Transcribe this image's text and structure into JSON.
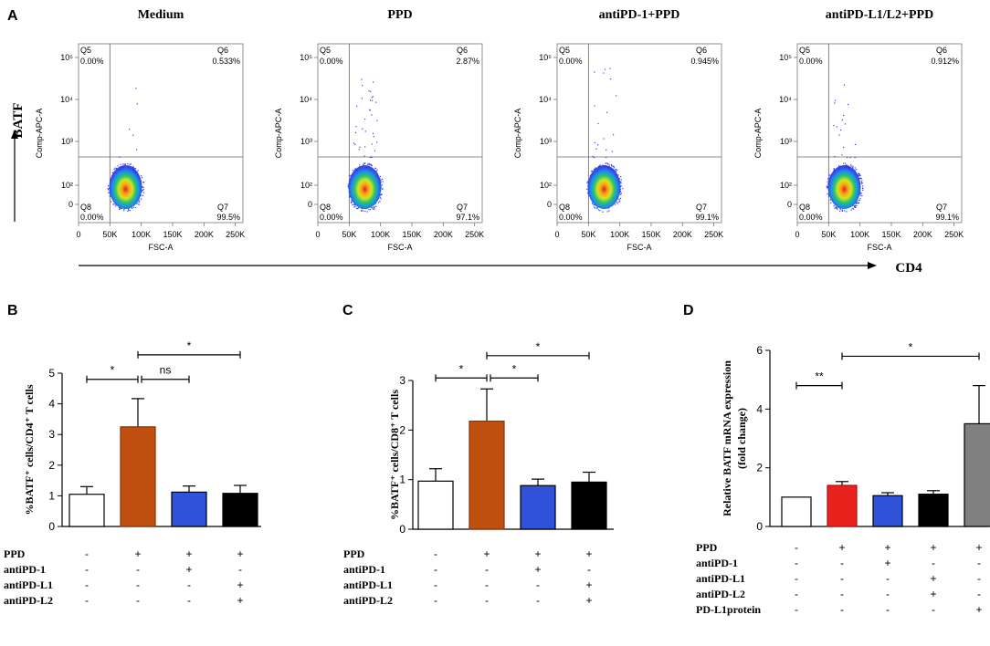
{
  "chart_data": [
    {
      "panel": "A",
      "type": "scatter",
      "description_labels": {
        "y_marker": "BATF",
        "x_marker": "CD4"
      },
      "xlabel": "FSC-A",
      "ylabel": "Comp-APC-A",
      "x_ticks": [
        "0",
        "50K",
        "100K",
        "150K",
        "200K",
        "250K"
      ],
      "x_tick_values": [
        0,
        50000,
        100000,
        150000,
        200000,
        250000
      ],
      "xlim": [
        0,
        262144
      ],
      "y_ticks": [
        "0",
        "10²",
        "10³",
        "10⁴",
        "10⁵"
      ],
      "plots": [
        {
          "title": "Medium",
          "quadrants": {
            "Q5": "0.00%",
            "Q6": "0.533%",
            "Q7": "99.5%",
            "Q8": "0.00%"
          }
        },
        {
          "title": "PPD",
          "quadrants": {
            "Q5": "0.00%",
            "Q6": "2.87%",
            "Q7": "97.1%",
            "Q8": "0.00%"
          }
        },
        {
          "title": "antiPD-1+PPD",
          "quadrants": {
            "Q5": "0.00%",
            "Q6": "0.945%",
            "Q7": "99.1%",
            "Q8": "0.00%"
          }
        },
        {
          "title": "antiPD-L1/L2+PPD",
          "quadrants": {
            "Q5": "0.00%",
            "Q6": "0.912%",
            "Q7": "99.1%",
            "Q8": "0.00%"
          }
        }
      ]
    },
    {
      "panel": "B",
      "type": "bar",
      "ylabel": "%BATF⁺ cells/CD4⁺ T cells",
      "ylim": [
        0,
        5
      ],
      "y_ticks": [
        0,
        1,
        2,
        3,
        4,
        5
      ],
      "values": [
        1.05,
        3.25,
        1.12,
        1.08
      ],
      "errors": [
        0.25,
        0.92,
        0.2,
        0.26
      ],
      "colors": [
        "#ffffff",
        "#c0500f",
        "#2f52d8",
        "#000000"
      ],
      "treatment_rows": [
        {
          "label": "PPD",
          "signs": [
            "-",
            "+",
            "+",
            "+"
          ]
        },
        {
          "label": "antiPD-1",
          "signs": [
            "-",
            "-",
            "+",
            "-"
          ]
        },
        {
          "label": "antiPD-L1",
          "signs": [
            "-",
            "-",
            "-",
            "+"
          ]
        },
        {
          "label": "antiPD-L2",
          "signs": [
            "-",
            "-",
            "-",
            "+"
          ]
        }
      ],
      "significance": [
        {
          "from": 0,
          "to": 1,
          "label": "*",
          "y": 4.8
        },
        {
          "from": 1,
          "to": 2,
          "label": "ns",
          "y": 4.8
        },
        {
          "from": 1,
          "to": 3,
          "label": "*",
          "y": 5.6
        }
      ]
    },
    {
      "panel": "C",
      "type": "bar",
      "ylabel": "%BATF⁺ cells/CD8⁺ T cells",
      "ylim": [
        0,
        3
      ],
      "y_ticks": [
        0,
        1,
        2,
        3
      ],
      "values": [
        0.97,
        2.18,
        0.88,
        0.95
      ],
      "errors": [
        0.25,
        0.65,
        0.13,
        0.2
      ],
      "colors": [
        "#ffffff",
        "#c0500f",
        "#2f52d8",
        "#000000"
      ],
      "treatment_rows": [
        {
          "label": "PPD",
          "signs": [
            "-",
            "+",
            "+",
            "+"
          ]
        },
        {
          "label": "antiPD-1",
          "signs": [
            "-",
            "-",
            "+",
            "-"
          ]
        },
        {
          "label": "antiPD-L1",
          "signs": [
            "-",
            "-",
            "-",
            "+"
          ]
        },
        {
          "label": "antiPD-L2",
          "signs": [
            "-",
            "-",
            "-",
            "+"
          ]
        }
      ],
      "significance": [
        {
          "from": 0,
          "to": 1,
          "label": "*",
          "y": 3.05
        },
        {
          "from": 1,
          "to": 2,
          "label": "*",
          "y": 3.05
        },
        {
          "from": 1,
          "to": 3,
          "label": "*",
          "y": 3.5
        }
      ]
    },
    {
      "panel": "D",
      "type": "bar",
      "ylabel": "Relative BATF mRNA expression",
      "ylabel2": "(fold change)",
      "ylim": [
        0,
        6
      ],
      "y_ticks": [
        0,
        2,
        4,
        6
      ],
      "values": [
        1.0,
        1.4,
        1.05,
        1.1,
        3.5
      ],
      "errors": [
        0.0,
        0.13,
        0.1,
        0.12,
        1.3
      ],
      "colors": [
        "#ffffff",
        "#e8221c",
        "#2f52d8",
        "#000000",
        "#808080"
      ],
      "treatment_rows": [
        {
          "label": "PPD",
          "signs": [
            "-",
            "+",
            "+",
            "+",
            "+"
          ]
        },
        {
          "label": "antiPD-1",
          "signs": [
            "-",
            "-",
            "+",
            "-",
            "-"
          ]
        },
        {
          "label": "antiPD-L1",
          "signs": [
            "-",
            "-",
            "-",
            "+",
            "-"
          ]
        },
        {
          "label": "antiPD-L2",
          "signs": [
            "-",
            "-",
            "-",
            "+",
            "-"
          ]
        },
        {
          "label": "PD-L1protein",
          "signs": [
            "-",
            "-",
            "-",
            "-",
            "+"
          ]
        }
      ],
      "significance": [
        {
          "from": 0,
          "to": 1,
          "label": "**",
          "y": 4.8
        },
        {
          "from": 1,
          "to": 4,
          "label": "*",
          "y": 5.8
        }
      ]
    }
  ]
}
